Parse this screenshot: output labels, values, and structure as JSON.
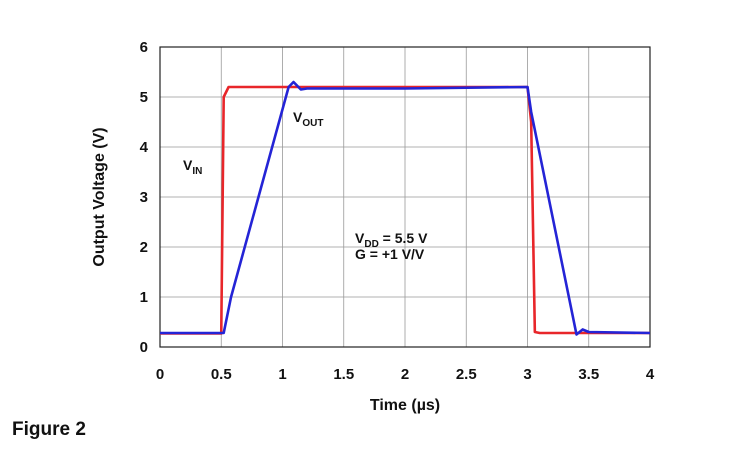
{
  "chart_data": {
    "type": "line",
    "xlabel": "Time (µs)",
    "ylabel": "Output Voltage (V)",
    "caption": "Figure 2",
    "xlim": [
      0,
      4
    ],
    "xticks": [
      0,
      0.5,
      1,
      1.5,
      2,
      2.5,
      3,
      3.5,
      4
    ],
    "ylim": [
      0,
      6
    ],
    "yticks": [
      0,
      1,
      2,
      3,
      4,
      5,
      6
    ],
    "grid": true,
    "series": [
      {
        "label": {
          "text": "V",
          "subscript": "IN"
        },
        "color": "#e8262a",
        "x": [
          0,
          0.5,
          0.52,
          0.56,
          1.0,
          2.0,
          3.0,
          3.03,
          3.06,
          3.1,
          4.0
        ],
        "values": [
          0.27,
          0.27,
          5.0,
          5.2,
          5.2,
          5.2,
          5.2,
          4.5,
          0.3,
          0.28,
          0.28
        ]
      },
      {
        "label": {
          "text": "V",
          "subscript": "OUT"
        },
        "color": "#2424d6",
        "x": [
          0,
          0.52,
          0.58,
          1.05,
          1.09,
          1.15,
          1.2,
          2.0,
          3.0,
          3.03,
          3.4,
          3.45,
          3.5,
          4.0
        ],
        "values": [
          0.28,
          0.28,
          1.0,
          5.2,
          5.3,
          5.15,
          5.17,
          5.17,
          5.2,
          4.7,
          0.25,
          0.35,
          0.3,
          0.28
        ]
      }
    ],
    "annotations": [
      {
        "text": "V",
        "subscript": "DD",
        "suffix": " = 5.5 V"
      },
      {
        "text": "G = +1 V/V"
      }
    ]
  }
}
